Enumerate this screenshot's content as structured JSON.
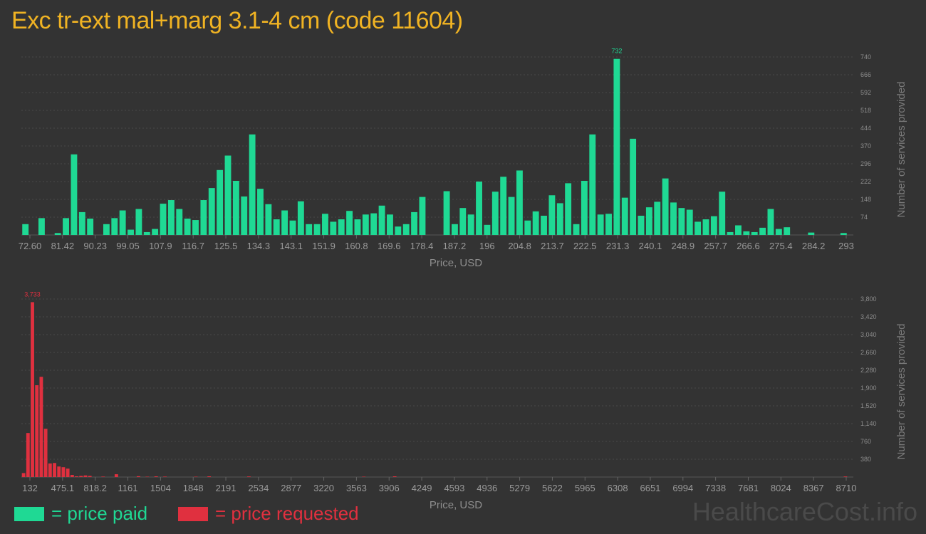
{
  "title": "Exc tr-ext mal+marg 3.1-4 cm (code 11604)",
  "colors": {
    "paid": "#1fd994",
    "requested": "#e0303f",
    "title": "#f0b323",
    "background": "#333333"
  },
  "legend": {
    "paid": "= price paid",
    "requested": "= price requested"
  },
  "watermark": "HealthcareCost.info",
  "chart_data": [
    {
      "type": "bar",
      "series_name": "price paid",
      "xlabel": "Price, USD",
      "ylabel": "Number of services provided",
      "ylim": [
        0,
        740
      ],
      "y_ticks": [
        "74",
        "148",
        "222",
        "296",
        "370",
        "444",
        "518",
        "592",
        "666",
        "740"
      ],
      "x_ticks": [
        "72.60",
        "81.42",
        "90.23",
        "99.05",
        "107.9",
        "116.7",
        "125.5",
        "134.3",
        "143.1",
        "151.9",
        "160.8",
        "169.6",
        "178.4",
        "187.2",
        "196",
        "204.8",
        "213.7",
        "222.5",
        "231.3",
        "240.1",
        "248.9",
        "257.7",
        "266.6",
        "275.4",
        "284.2",
        "293"
      ],
      "peak_label": "732",
      "grid": true,
      "values": [
        45,
        0,
        70,
        0,
        8,
        70,
        335,
        95,
        68,
        0,
        45,
        70,
        102,
        22,
        108,
        12,
        25,
        130,
        145,
        108,
        68,
        62,
        145,
        195,
        270,
        330,
        225,
        160,
        418,
        192,
        128,
        65,
        102,
        60,
        140,
        45,
        45,
        88,
        55,
        65,
        100,
        65,
        85,
        90,
        122,
        85,
        35,
        45,
        95,
        158,
        0,
        0,
        182,
        45,
        112,
        85,
        222,
        42,
        180,
        242,
        158,
        268,
        60,
        98,
        80,
        165,
        132,
        215,
        45,
        225,
        418,
        85,
        88,
        732,
        155,
        400,
        80,
        115,
        138,
        235,
        135,
        112,
        105,
        55,
        65,
        78,
        180,
        12,
        40,
        15,
        12,
        30,
        108,
        25,
        32,
        0,
        0,
        10,
        0,
        0,
        0,
        8
      ]
    },
    {
      "type": "bar",
      "series_name": "price requested",
      "xlabel": "Price, USD",
      "ylabel": "Number of services provided",
      "ylim": [
        0,
        3800
      ],
      "y_ticks": [
        "380",
        "760",
        "1,140",
        "1,520",
        "1,900",
        "2,280",
        "2,660",
        "3,040",
        "3,420",
        "3,800"
      ],
      "x_ticks": [
        "132",
        "475.1",
        "818.2",
        "1161",
        "1504",
        "1848",
        "2191",
        "2534",
        "2877",
        "3220",
        "3563",
        "3906",
        "4249",
        "4593",
        "4936",
        "5279",
        "5622",
        "5965",
        "6308",
        "6651",
        "6994",
        "7338",
        "7681",
        "8024",
        "8367",
        "8710"
      ],
      "peak_label": "3,733",
      "grid": true,
      "values": [
        85,
        940,
        3733,
        1960,
        2140,
        1030,
        290,
        300,
        225,
        210,
        180,
        45,
        15,
        25,
        35,
        25,
        0,
        0,
        10,
        0,
        0,
        60,
        0,
        0,
        0,
        0,
        18,
        0,
        8,
        0,
        15,
        0,
        10,
        0,
        0,
        0,
        0,
        0,
        0,
        8,
        0,
        0,
        15,
        0,
        0,
        0,
        0,
        0,
        0,
        0,
        0,
        12,
        0,
        0,
        0,
        0,
        0,
        0,
        0,
        0,
        0,
        0,
        0,
        0,
        0,
        0,
        0,
        0,
        0,
        0,
        0,
        0,
        0,
        0,
        0,
        0,
        0,
        8,
        0,
        0,
        0,
        0,
        0,
        0,
        15,
        0,
        0,
        0,
        0,
        0,
        0,
        0,
        0,
        0,
        0,
        0,
        0,
        0,
        0,
        0,
        0,
        0,
        0,
        0,
        0,
        0,
        0,
        0,
        0,
        0,
        0,
        0,
        0,
        0,
        0,
        0,
        0,
        0,
        0,
        0,
        0,
        0,
        0,
        0,
        0,
        0,
        0,
        0,
        0,
        0,
        0,
        0,
        0,
        0,
        0,
        0,
        0,
        0,
        0,
        0,
        0,
        0,
        0,
        0,
        0,
        0,
        0,
        0,
        0,
        0,
        0,
        0,
        0,
        0,
        0,
        0,
        0,
        0,
        0,
        0,
        0,
        0,
        0,
        0,
        0,
        0,
        0,
        0,
        0,
        0,
        0,
        0,
        0,
        0,
        0,
        0,
        0,
        0,
        0,
        0,
        0,
        0,
        0,
        0,
        0,
        0,
        12
      ]
    }
  ]
}
